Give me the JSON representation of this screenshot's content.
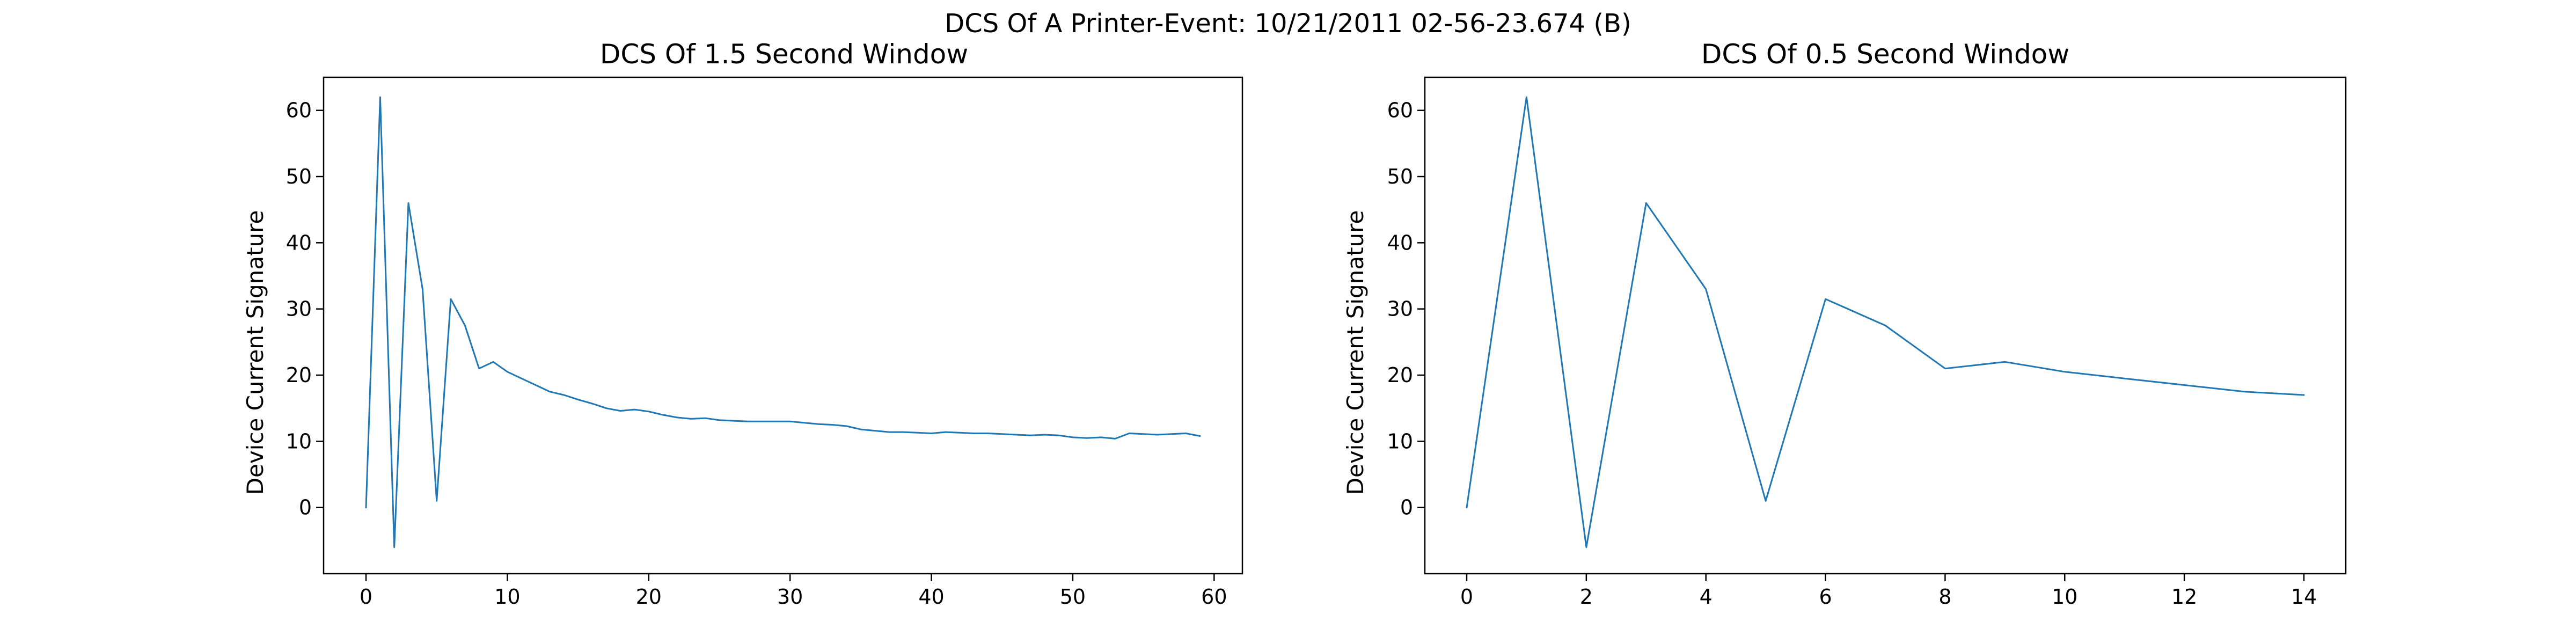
{
  "suptitle": "DCS Of A Printer-Event: 10/21/2011 02-56-23.674 (B)",
  "line_color": "#1f77b4",
  "chart_data": [
    {
      "type": "line",
      "title": "DCS Of 1.5 Second Window",
      "xlabel": "",
      "ylabel": "Device Current Signature",
      "xlim": [
        -3,
        62
      ],
      "ylim": [
        -10,
        65
      ],
      "xticks": [
        0,
        10,
        20,
        30,
        40,
        50,
        60
      ],
      "yticks": [
        0,
        10,
        20,
        30,
        40,
        50,
        60
      ],
      "x": [
        0,
        1,
        2,
        3,
        4,
        5,
        6,
        7,
        8,
        9,
        10,
        11,
        12,
        13,
        14,
        15,
        16,
        17,
        18,
        19,
        20,
        21,
        22,
        23,
        24,
        25,
        26,
        27,
        28,
        29,
        30,
        31,
        32,
        33,
        34,
        35,
        36,
        37,
        38,
        39,
        40,
        41,
        42,
        43,
        44,
        45,
        46,
        47,
        48,
        49,
        50,
        51,
        52,
        53,
        54,
        55,
        56,
        57,
        58,
        59
      ],
      "y": [
        0,
        62,
        -6,
        46,
        33,
        1,
        31.5,
        27.5,
        21,
        22,
        20.5,
        19.5,
        18.5,
        17.5,
        17,
        16.3,
        15.7,
        15,
        14.6,
        14.8,
        14.5,
        14,
        13.6,
        13.4,
        13.5,
        13.2,
        13.1,
        13,
        13,
        13,
        13,
        12.8,
        12.6,
        12.5,
        12.3,
        11.8,
        11.6,
        11.4,
        11.4,
        11.3,
        11.2,
        11.4,
        11.3,
        11.2,
        11.2,
        11.1,
        11,
        10.9,
        11,
        10.9,
        10.6,
        10.5,
        10.6,
        10.4,
        11.2,
        11.1,
        11,
        11.1,
        11.2,
        10.8
      ]
    },
    {
      "type": "line",
      "title": "DCS Of 0.5 Second Window",
      "xlabel": "",
      "ylabel": "Device Current Signature",
      "xlim": [
        -0.7,
        14.7
      ],
      "ylim": [
        -10,
        65
      ],
      "xticks": [
        0,
        2,
        4,
        6,
        8,
        10,
        12,
        14
      ],
      "yticks": [
        0,
        10,
        20,
        30,
        40,
        50,
        60
      ],
      "x": [
        0,
        1,
        2,
        3,
        4,
        5,
        6,
        7,
        8,
        9,
        10,
        11,
        12,
        13,
        14
      ],
      "y": [
        0,
        62,
        -6,
        46,
        33,
        1,
        31.5,
        27.5,
        21,
        22,
        20.5,
        19.5,
        18.5,
        17.5,
        17
      ]
    }
  ]
}
